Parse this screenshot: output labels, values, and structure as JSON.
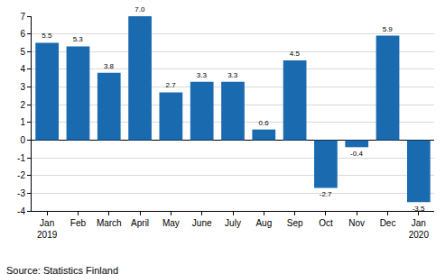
{
  "chart_data": {
    "type": "bar",
    "categories": [
      "Jan\n2019",
      "Feb",
      "March",
      "April",
      "May",
      "June",
      "July",
      "Aug",
      "Sep",
      "Oct",
      "Nov",
      "Dec",
      "Jan\n2020"
    ],
    "values": [
      5.5,
      5.3,
      3.8,
      7.0,
      2.7,
      3.3,
      3.3,
      0.6,
      4.5,
      -2.7,
      -0.4,
      5.9,
      -3.5
    ],
    "value_labels": [
      "5.5",
      "5.3",
      "3.8",
      "7.0",
      "2.7",
      "3.3",
      "3.3",
      "0.6",
      "4.5",
      "-2.7",
      "-0.4",
      "5.9",
      "-3.5"
    ],
    "color": "#1a6aaf",
    "ylim": [
      -4,
      7
    ],
    "yticks": [
      -4,
      -3,
      -2,
      -1,
      0,
      1,
      2,
      3,
      4,
      5,
      6,
      7
    ],
    "grid": true,
    "data_labels": true,
    "annotations": [
      "Source: Statistics Finland"
    ]
  }
}
